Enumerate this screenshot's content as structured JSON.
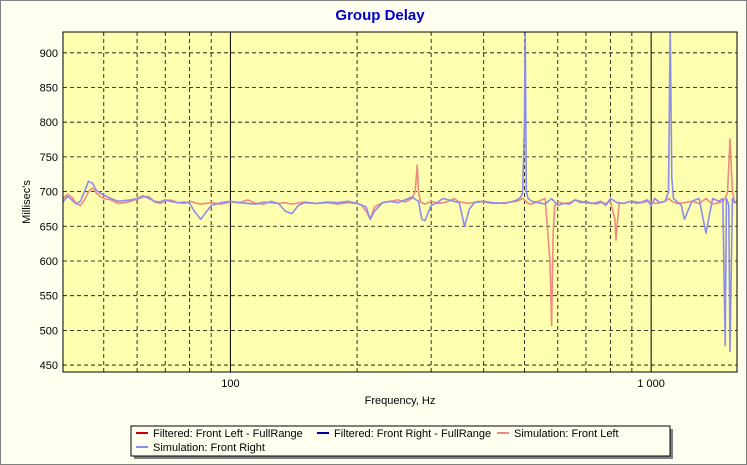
{
  "chart_data": {
    "type": "line",
    "title": "Group Delay",
    "xlabel": "Frequency, Hz",
    "ylabel": "Millisec's",
    "x_scale": "log",
    "xlim": [
      40,
      1600
    ],
    "ylim": [
      440,
      930
    ],
    "x_major_ticks": [
      100,
      1000
    ],
    "x_tick_labels": [
      "100",
      "1 000"
    ],
    "y_ticks": [
      450,
      500,
      550,
      600,
      650,
      700,
      750,
      800,
      850,
      900
    ],
    "grid": true,
    "legend_placement": "bottom",
    "colors": {
      "plot_bg": "#ffffb0",
      "page_bg": "#fffff0",
      "title": "#0000cc"
    },
    "series": [
      {
        "name": "Filtered: Front Left - FullRange",
        "color": "#cc0000",
        "x": [],
        "values": []
      },
      {
        "name": "Filtered: Front Right - FullRange",
        "color": "#000099",
        "x": [],
        "values": []
      },
      {
        "name": "Simulation: Front Left",
        "color": "#f08a80",
        "x": [
          40,
          41,
          42,
          43,
          44,
          45,
          46,
          47,
          48,
          49,
          50,
          52,
          54,
          56,
          58,
          60,
          62,
          64,
          66,
          68,
          70,
          72,
          75,
          78,
          80,
          85,
          90,
          95,
          100,
          105,
          110,
          115,
          120,
          125,
          130,
          135,
          140,
          150,
          160,
          170,
          180,
          190,
          200,
          205,
          210,
          215,
          220,
          230,
          240,
          250,
          260,
          270,
          275,
          278,
          280,
          283,
          290,
          300,
          310,
          320,
          330,
          340,
          350,
          370,
          390,
          400,
          420,
          450,
          480,
          495,
          500,
          510,
          520,
          540,
          560,
          575,
          580,
          585,
          590,
          600,
          620,
          640,
          660,
          680,
          700,
          720,
          740,
          760,
          780,
          800,
          820,
          825,
          830,
          840,
          860,
          880,
          900,
          920,
          950,
          980,
          1000,
          1020,
          1050,
          1080,
          1100,
          1120,
          1150,
          1200,
          1250,
          1300,
          1350,
          1400,
          1450,
          1480,
          1500,
          1520,
          1540,
          1560,
          1580,
          1600
        ],
        "values": [
          690,
          696,
          692,
          683,
          680,
          688,
          700,
          705,
          698,
          693,
          690,
          688,
          683,
          684,
          686,
          689,
          692,
          693,
          685,
          683,
          686,
          688,
          684,
          683,
          686,
          682,
          684,
          682,
          685,
          684,
          688,
          683,
          682,
          686,
          683,
          684,
          682,
          685,
          683,
          684,
          682,
          684,
          683,
          680,
          672,
          660,
          678,
          684,
          686,
          688,
          685,
          690,
          700,
          738,
          700,
          685,
          682,
          686,
          683,
          684,
          686,
          690,
          685,
          683,
          686,
          685,
          683,
          684,
          686,
          690,
          688,
          683,
          682,
          686,
          690,
          600,
          507,
          640,
          680,
          685,
          683,
          684,
          688,
          686,
          683,
          684,
          682,
          684,
          683,
          686,
          660,
          630,
          650,
          684,
          683,
          685,
          686,
          683,
          684,
          686,
          685,
          683,
          684,
          686,
          690,
          686,
          683,
          684,
          686,
          683,
          690,
          682,
          684,
          686,
          690,
          700,
          776,
          700,
          684,
          686
        ]
      },
      {
        "name": "Simulation: Front Right",
        "color": "#8c8cf0",
        "x": [
          40,
          41,
          42,
          43,
          44,
          45,
          46,
          47,
          48,
          49,
          50,
          52,
          54,
          56,
          58,
          60,
          62,
          64,
          66,
          68,
          70,
          72,
          75,
          78,
          80,
          82,
          85,
          90,
          95,
          100,
          105,
          110,
          115,
          120,
          125,
          130,
          135,
          140,
          145,
          150,
          160,
          170,
          180,
          190,
          200,
          210,
          215,
          220,
          230,
          240,
          250,
          260,
          270,
          280,
          285,
          290,
          300,
          310,
          320,
          330,
          340,
          350,
          360,
          370,
          380,
          400,
          420,
          450,
          470,
          480,
          490,
          495,
          500,
          502,
          505,
          510,
          520,
          540,
          560,
          580,
          600,
          620,
          640,
          660,
          680,
          700,
          720,
          740,
          760,
          780,
          800,
          830,
          860,
          900,
          940,
          980,
          1000,
          1020,
          1050,
          1080,
          1100,
          1110,
          1120,
          1130,
          1150,
          1180,
          1200,
          1250,
          1300,
          1350,
          1400,
          1450,
          1480,
          1500,
          1510,
          1520,
          1530,
          1540,
          1560,
          1580,
          1600
        ],
        "values": [
          685,
          693,
          688,
          682,
          686,
          700,
          715,
          712,
          702,
          698,
          695,
          690,
          686,
          687,
          688,
          690,
          694,
          690,
          686,
          685,
          688,
          686,
          684,
          685,
          683,
          672,
          660,
          680,
          684,
          686,
          684,
          683,
          682,
          685,
          684,
          683,
          672,
          668,
          680,
          684,
          683,
          685,
          684,
          686,
          683,
          678,
          660,
          672,
          684,
          686,
          684,
          688,
          692,
          686,
          660,
          658,
          680,
          684,
          690,
          688,
          686,
          684,
          650,
          675,
          684,
          686,
          684,
          683,
          686,
          688,
          692,
          698,
          800,
          935,
          700,
          690,
          686,
          684,
          682,
          690,
          680,
          683,
          682,
          688,
          684,
          686,
          683,
          684,
          686,
          680,
          690,
          684,
          683,
          686,
          684,
          688,
          680,
          690,
          684,
          686,
          700,
          935,
          720,
          690,
          686,
          680,
          660,
          686,
          690,
          640,
          690,
          686,
          690,
          478,
          690,
          686,
          680,
          470,
          690,
          684,
          686
        ]
      }
    ]
  }
}
